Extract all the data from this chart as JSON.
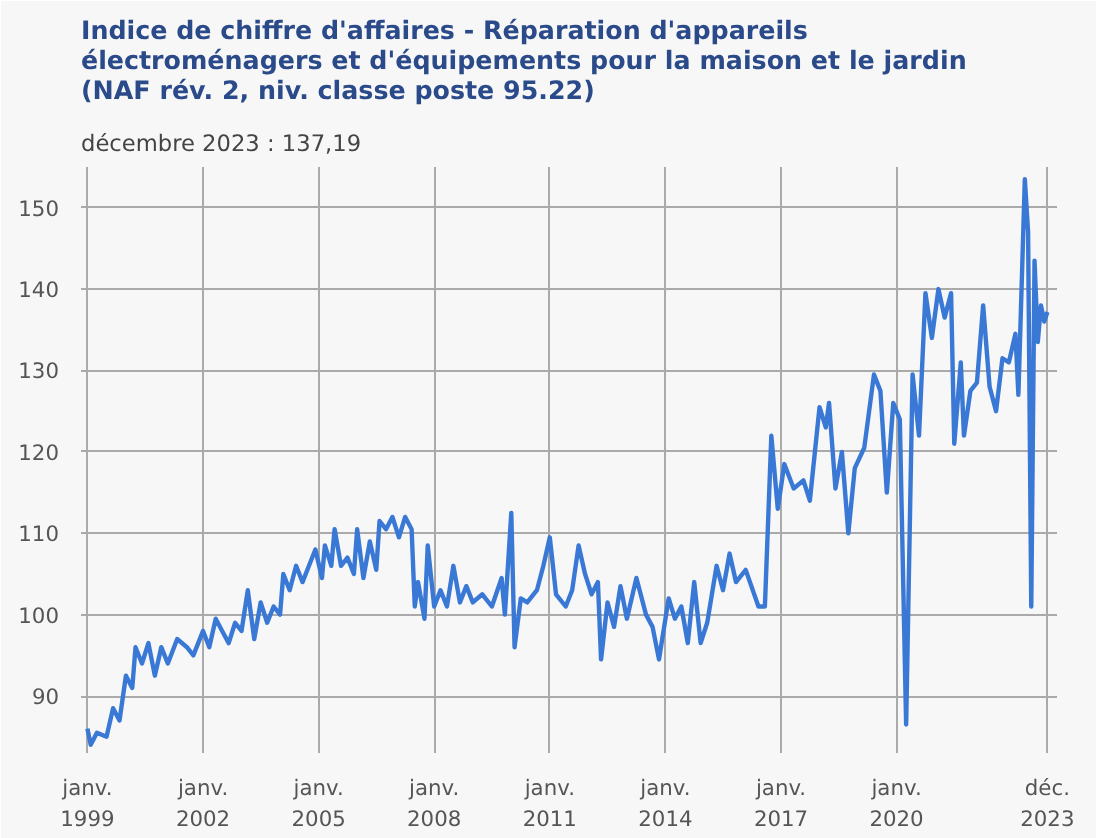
{
  "chart_data": {
    "type": "line",
    "title": "Indice de chiffre d'affaires - Réparation d'appareils\nélectroménagers et d'équipements pour la maison et le jardin\n(NAF rév. 2, niv. classe poste 95.22)",
    "subtitle": "décembre 2023 : 137,19",
    "grid": true,
    "marker": "none",
    "line_style": "solid",
    "xlim": [
      "1998-11",
      "2024-03"
    ],
    "ylim": [
      83,
      155
    ],
    "yticks": [
      90,
      100,
      110,
      120,
      130,
      140,
      150
    ],
    "xticks": [
      {
        "value": "1999-01",
        "label": "janv.\n1999"
      },
      {
        "value": "2002-01",
        "label": "janv.\n2002"
      },
      {
        "value": "2005-01",
        "label": "janv.\n2005"
      },
      {
        "value": "2008-01",
        "label": "janv.\n2008"
      },
      {
        "value": "2011-01",
        "label": "janv.\n2011"
      },
      {
        "value": "2014-01",
        "label": "janv.\n2014"
      },
      {
        "value": "2017-01",
        "label": "janv.\n2017"
      },
      {
        "value": "2020-01",
        "label": "janv.\n2020"
      },
      {
        "value": "2023-12",
        "label": "déc.\n2023"
      }
    ],
    "series": [
      {
        "color": "#3a78d6",
        "x": [
          "1999-01",
          "1999-02",
          "1999-04",
          "1999-07",
          "1999-09",
          "1999-11",
          "2000-01",
          "2000-03",
          "2000-04",
          "2000-06",
          "2000-08",
          "2000-10",
          "2000-12",
          "2001-02",
          "2001-05",
          "2001-08",
          "2001-10",
          "2002-01",
          "2002-03",
          "2002-05",
          "2002-07",
          "2002-09",
          "2002-11",
          "2003-01",
          "2003-03",
          "2003-05",
          "2003-07",
          "2003-09",
          "2003-11",
          "2004-01",
          "2004-02",
          "2004-04",
          "2004-06",
          "2004-08",
          "2004-10",
          "2004-12",
          "2005-02",
          "2005-03",
          "2005-05",
          "2005-06",
          "2005-08",
          "2005-10",
          "2005-12",
          "2006-01",
          "2006-03",
          "2006-05",
          "2006-07",
          "2006-08",
          "2006-10",
          "2006-12",
          "2007-02",
          "2007-04",
          "2007-06",
          "2007-07",
          "2007-08",
          "2007-10",
          "2007-11",
          "2008-01",
          "2008-03",
          "2008-05",
          "2008-07",
          "2008-09",
          "2008-11",
          "2009-01",
          "2009-04",
          "2009-07",
          "2009-10",
          "2009-11",
          "2010-01",
          "2010-02",
          "2010-04",
          "2010-06",
          "2010-09",
          "2010-11",
          "2011-01",
          "2011-03",
          "2011-06",
          "2011-08",
          "2011-10",
          "2011-12",
          "2012-02",
          "2012-04",
          "2012-05",
          "2012-07",
          "2012-09",
          "2012-11",
          "2013-01",
          "2013-04",
          "2013-07",
          "2013-09",
          "2013-11",
          "2014-02",
          "2014-04",
          "2014-06",
          "2014-08",
          "2014-10",
          "2014-12",
          "2015-02",
          "2015-05",
          "2015-07",
          "2015-09",
          "2015-11",
          "2016-02",
          "2016-06",
          "2016-08",
          "2016-10",
          "2016-12",
          "2017-02",
          "2017-05",
          "2017-08",
          "2017-10",
          "2018-01",
          "2018-03",
          "2018-04",
          "2018-06",
          "2018-08",
          "2018-10",
          "2018-12",
          "2019-03",
          "2019-06",
          "2019-08",
          "2019-10",
          "2019-12",
          "2020-02",
          "2020-04",
          "2020-06",
          "2020-08",
          "2020-10",
          "2020-12",
          "2021-02",
          "2021-04",
          "2021-06",
          "2021-07",
          "2021-09",
          "2021-10",
          "2021-12",
          "2022-02",
          "2022-04",
          "2022-06",
          "2022-08",
          "2022-10",
          "2022-12",
          "2023-02",
          "2023-03",
          "2023-05",
          "2023-06",
          "2023-07",
          "2023-08",
          "2023-09",
          "2023-10",
          "2023-11",
          "2023-12"
        ],
        "values": [
          86,
          84,
          85.5,
          85,
          88.5,
          87,
          92.5,
          91,
          96,
          94,
          96.5,
          92.5,
          96,
          94,
          97,
          96,
          95,
          98,
          96,
          99.5,
          98,
          96.5,
          99,
          98,
          103,
          97,
          101.5,
          99,
          101,
          100,
          105,
          103,
          106,
          104,
          106,
          108,
          104.5,
          108.5,
          106,
          110.5,
          106,
          107,
          105,
          110.5,
          104.5,
          109,
          105.5,
          111.5,
          110.5,
          112,
          109.5,
          112,
          110.5,
          101,
          104,
          99.5,
          108.5,
          101,
          103,
          101,
          106,
          101.5,
          103.5,
          101.5,
          102.5,
          101,
          104.5,
          100,
          112.5,
          96,
          102,
          101.5,
          103,
          106,
          109.5,
          102.5,
          101,
          103,
          108.5,
          105,
          102.5,
          104,
          94.5,
          101.5,
          98.5,
          103.5,
          99.5,
          104.5,
          100,
          98.5,
          94.5,
          102,
          99.5,
          101,
          96.5,
          104,
          96.5,
          99,
          106,
          103,
          107.5,
          104,
          105.5,
          101,
          101,
          122,
          113,
          118.5,
          115.5,
          116.5,
          114,
          125.5,
          123,
          126,
          115.5,
          120,
          110,
          118,
          120.5,
          129.5,
          127.5,
          115,
          126,
          124,
          86.5,
          129.5,
          122,
          139.5,
          134,
          140,
          136.5,
          139.5,
          121,
          131,
          122,
          127.5,
          128.5,
          138,
          128,
          125,
          131.5,
          131,
          134.5,
          127,
          153.5,
          147,
          101,
          143.5,
          133.5,
          138,
          136,
          137.19
        ]
      }
    ]
  }
}
